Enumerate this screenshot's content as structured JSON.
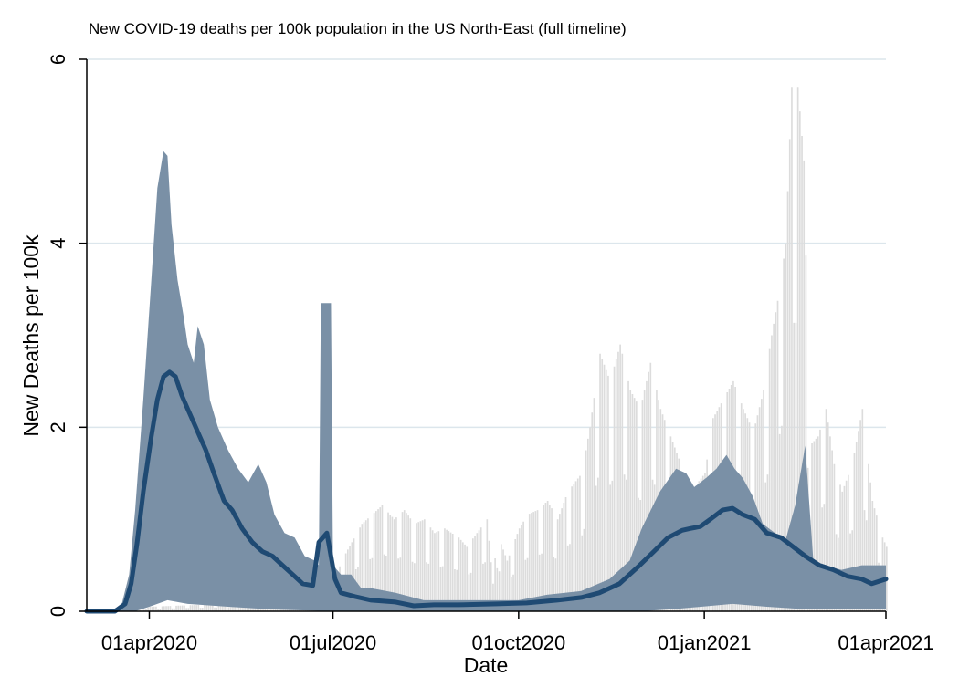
{
  "chart_data": {
    "type": "area",
    "title": "New COVID-19 deaths per 100k population in the US North-East (full timeline)",
    "xlabel": "Date",
    "ylabel": "New Deaths per 100k",
    "x_range": [
      "2020-03-01",
      "2021-04-01"
    ],
    "ylim": [
      0,
      6
    ],
    "y_ticks": [
      0,
      2,
      4,
      6
    ],
    "x_ticks": [
      {
        "date": "2020-04-01",
        "label": "01apr2020"
      },
      {
        "date": "2020-07-01",
        "label": "01jul2020"
      },
      {
        "date": "2020-10-01",
        "label": "01oct2020"
      },
      {
        "date": "2021-01-01",
        "label": "01jan2021"
      },
      {
        "date": "2021-04-01",
        "label": "01apr2021"
      }
    ],
    "grid": "horizontal",
    "legend": "none",
    "colors": {
      "range_band": "#7a90a6",
      "background_bars": "#dcdcdc",
      "mean_line": "#1f4a73",
      "grid": "#dce6ec"
    },
    "series": [
      {
        "role": "state-range band (max)",
        "points": [
          [
            "2020-03-01",
            0.0
          ],
          [
            "2020-03-10",
            0.0
          ],
          [
            "2020-03-18",
            0.05
          ],
          [
            "2020-03-22",
            0.4
          ],
          [
            "2020-03-25",
            1.1
          ],
          [
            "2020-03-29",
            2.3
          ],
          [
            "2020-04-02",
            3.6
          ],
          [
            "2020-04-05",
            4.6
          ],
          [
            "2020-04-08",
            5.0
          ],
          [
            "2020-04-10",
            4.95
          ],
          [
            "2020-04-12",
            4.2
          ],
          [
            "2020-04-15",
            3.6
          ],
          [
            "2020-04-18",
            3.2
          ],
          [
            "2020-04-20",
            2.9
          ],
          [
            "2020-04-23",
            2.7
          ],
          [
            "2020-04-25",
            3.1
          ],
          [
            "2020-04-28",
            2.9
          ],
          [
            "2020-05-01",
            2.3
          ],
          [
            "2020-05-05",
            2.0
          ],
          [
            "2020-05-10",
            1.75
          ],
          [
            "2020-05-15",
            1.55
          ],
          [
            "2020-05-20",
            1.4
          ],
          [
            "2020-05-25",
            1.6
          ],
          [
            "2020-05-29",
            1.4
          ],
          [
            "2020-06-02",
            1.05
          ],
          [
            "2020-06-07",
            0.85
          ],
          [
            "2020-06-12",
            0.8
          ],
          [
            "2020-06-17",
            0.6
          ],
          [
            "2020-06-22",
            0.55
          ],
          [
            "2020-06-24",
            0.5
          ],
          [
            "2020-06-25",
            3.35
          ],
          [
            "2020-06-30",
            3.35
          ],
          [
            "2020-07-01",
            0.5
          ],
          [
            "2020-07-05",
            0.4
          ],
          [
            "2020-07-10",
            0.4
          ],
          [
            "2020-07-15",
            0.25
          ],
          [
            "2020-07-20",
            0.25
          ],
          [
            "2020-08-01",
            0.2
          ],
          [
            "2020-08-15",
            0.12
          ],
          [
            "2020-09-01",
            0.12
          ],
          [
            "2020-09-15",
            0.12
          ],
          [
            "2020-10-01",
            0.12
          ],
          [
            "2020-10-15",
            0.18
          ],
          [
            "2020-11-01",
            0.22
          ],
          [
            "2020-11-15",
            0.35
          ],
          [
            "2020-11-25",
            0.55
          ],
          [
            "2020-12-01",
            0.9
          ],
          [
            "2020-12-10",
            1.3
          ],
          [
            "2020-12-18",
            1.55
          ],
          [
            "2020-12-23",
            1.5
          ],
          [
            "2020-12-27",
            1.35
          ],
          [
            "2021-01-02",
            1.45
          ],
          [
            "2021-01-07",
            1.55
          ],
          [
            "2021-01-12",
            1.7
          ],
          [
            "2021-01-16",
            1.55
          ],
          [
            "2021-01-20",
            1.45
          ],
          [
            "2021-01-25",
            1.25
          ],
          [
            "2021-01-30",
            0.95
          ],
          [
            "2021-02-05",
            0.85
          ],
          [
            "2021-02-10",
            0.75
          ],
          [
            "2021-02-15",
            1.15
          ],
          [
            "2021-02-20",
            1.8
          ],
          [
            "2021-02-24",
            0.55
          ],
          [
            "2021-03-01",
            0.5
          ],
          [
            "2021-03-10",
            0.45
          ],
          [
            "2021-03-20",
            0.5
          ],
          [
            "2021-04-01",
            0.5
          ]
        ]
      },
      {
        "role": "state-range band (min)",
        "points": [
          [
            "2020-03-01",
            0.0
          ],
          [
            "2020-03-25",
            0.0
          ],
          [
            "2020-04-01",
            0.05
          ],
          [
            "2020-04-10",
            0.12
          ],
          [
            "2020-04-20",
            0.08
          ],
          [
            "2020-05-10",
            0.05
          ],
          [
            "2020-06-01",
            0.02
          ],
          [
            "2020-07-01",
            0.0
          ],
          [
            "2020-12-01",
            0.0
          ],
          [
            "2020-12-20",
            0.03
          ],
          [
            "2021-01-15",
            0.08
          ],
          [
            "2021-02-01",
            0.05
          ],
          [
            "2021-02-15",
            0.03
          ],
          [
            "2021-03-01",
            0.02
          ],
          [
            "2021-04-01",
            0.02
          ]
        ]
      },
      {
        "role": "background bars (daily, highest state)",
        "points": [
          [
            "2020-03-01",
            0.0
          ],
          [
            "2020-03-25",
            0.0
          ],
          [
            "2020-04-01",
            0.05
          ],
          [
            "2020-06-01",
            0.1
          ],
          [
            "2020-07-01",
            0.3
          ],
          [
            "2020-07-05",
            0.55
          ],
          [
            "2020-07-10",
            0.75
          ],
          [
            "2020-07-15",
            0.95
          ],
          [
            "2020-07-20",
            1.05
          ],
          [
            "2020-07-25",
            1.15
          ],
          [
            "2020-07-31",
            1.0
          ],
          [
            "2020-08-05",
            1.1
          ],
          [
            "2020-08-10",
            0.95
          ],
          [
            "2020-08-15",
            1.0
          ],
          [
            "2020-08-20",
            0.85
          ],
          [
            "2020-08-25",
            0.9
          ],
          [
            "2020-09-01",
            0.8
          ],
          [
            "2020-09-05",
            0.7
          ],
          [
            "2020-09-10",
            0.85
          ],
          [
            "2020-09-15",
            1.0
          ],
          [
            "2020-09-18",
            0.3
          ],
          [
            "2020-09-20",
            0.85
          ],
          [
            "2020-09-25",
            0.55
          ],
          [
            "2020-10-01",
            0.9
          ],
          [
            "2020-10-05",
            1.05
          ],
          [
            "2020-10-10",
            1.1
          ],
          [
            "2020-10-15",
            1.2
          ],
          [
            "2020-10-20",
            1.0
          ],
          [
            "2020-10-25",
            1.3
          ],
          [
            "2020-11-01",
            1.5
          ],
          [
            "2020-11-05",
            2.0
          ],
          [
            "2020-11-10",
            2.8
          ],
          [
            "2020-11-15",
            2.5
          ],
          [
            "2020-11-20",
            2.9
          ],
          [
            "2020-11-25",
            2.4
          ],
          [
            "2020-11-30",
            2.2
          ],
          [
            "2020-12-05",
            2.7
          ],
          [
            "2020-12-10",
            2.2
          ],
          [
            "2020-12-15",
            1.9
          ],
          [
            "2020-12-20",
            1.6
          ],
          [
            "2020-12-25",
            1.3
          ],
          [
            "2021-01-01",
            1.5
          ],
          [
            "2021-01-05",
            2.1
          ],
          [
            "2021-01-10",
            2.3
          ],
          [
            "2021-01-15",
            2.5
          ],
          [
            "2021-01-20",
            2.2
          ],
          [
            "2021-01-25",
            1.95
          ],
          [
            "2021-01-30",
            2.4
          ],
          [
            "2021-02-03",
            3.0
          ],
          [
            "2021-02-07",
            3.5
          ],
          [
            "2021-02-10",
            4.0
          ],
          [
            "2021-02-13",
            5.7
          ],
          [
            "2021-02-16",
            5.7
          ],
          [
            "2021-02-19",
            4.9
          ],
          [
            "2021-02-22",
            1.8
          ],
          [
            "2021-02-26",
            1.9
          ],
          [
            "2021-03-02",
            2.2
          ],
          [
            "2021-03-06",
            1.6
          ],
          [
            "2021-03-10",
            1.3
          ],
          [
            "2021-03-15",
            1.6
          ],
          [
            "2021-03-20",
            2.2
          ],
          [
            "2021-03-25",
            1.2
          ],
          [
            "2021-03-30",
            0.8
          ],
          [
            "2021-04-01",
            0.7
          ]
        ]
      },
      {
        "role": "average line",
        "points": [
          [
            "2020-03-01",
            0.0
          ],
          [
            "2020-03-15",
            0.0
          ],
          [
            "2020-03-20",
            0.08
          ],
          [
            "2020-03-23",
            0.3
          ],
          [
            "2020-03-26",
            0.75
          ],
          [
            "2020-03-29",
            1.3
          ],
          [
            "2020-04-02",
            1.9
          ],
          [
            "2020-04-05",
            2.3
          ],
          [
            "2020-04-08",
            2.55
          ],
          [
            "2020-04-11",
            2.6
          ],
          [
            "2020-04-14",
            2.55
          ],
          [
            "2020-04-17",
            2.35
          ],
          [
            "2020-04-20",
            2.2
          ],
          [
            "2020-04-23",
            2.05
          ],
          [
            "2020-04-26",
            1.9
          ],
          [
            "2020-04-29",
            1.75
          ],
          [
            "2020-05-03",
            1.5
          ],
          [
            "2020-05-08",
            1.2
          ],
          [
            "2020-05-12",
            1.1
          ],
          [
            "2020-05-17",
            0.9
          ],
          [
            "2020-05-22",
            0.75
          ],
          [
            "2020-05-27",
            0.65
          ],
          [
            "2020-06-01",
            0.6
          ],
          [
            "2020-06-06",
            0.5
          ],
          [
            "2020-06-11",
            0.4
          ],
          [
            "2020-06-16",
            0.3
          ],
          [
            "2020-06-21",
            0.28
          ],
          [
            "2020-06-24",
            0.75
          ],
          [
            "2020-06-28",
            0.85
          ],
          [
            "2020-07-02",
            0.35
          ],
          [
            "2020-07-05",
            0.2
          ],
          [
            "2020-07-12",
            0.16
          ],
          [
            "2020-07-20",
            0.12
          ],
          [
            "2020-08-01",
            0.1
          ],
          [
            "2020-08-10",
            0.06
          ],
          [
            "2020-08-20",
            0.07
          ],
          [
            "2020-09-01",
            0.07
          ],
          [
            "2020-09-20",
            0.08
          ],
          [
            "2020-10-05",
            0.09
          ],
          [
            "2020-10-20",
            0.12
          ],
          [
            "2020-11-01",
            0.15
          ],
          [
            "2020-11-10",
            0.2
          ],
          [
            "2020-11-20",
            0.3
          ],
          [
            "2020-11-30",
            0.5
          ],
          [
            "2020-12-07",
            0.65
          ],
          [
            "2020-12-14",
            0.8
          ],
          [
            "2020-12-21",
            0.88
          ],
          [
            "2020-12-25",
            0.9
          ],
          [
            "2020-12-30",
            0.92
          ],
          [
            "2021-01-04",
            1.0
          ],
          [
            "2021-01-10",
            1.1
          ],
          [
            "2021-01-15",
            1.12
          ],
          [
            "2021-01-20",
            1.05
          ],
          [
            "2021-01-26",
            1.0
          ],
          [
            "2021-02-01",
            0.85
          ],
          [
            "2021-02-08",
            0.8
          ],
          [
            "2021-02-14",
            0.7
          ],
          [
            "2021-02-20",
            0.6
          ],
          [
            "2021-02-27",
            0.5
          ],
          [
            "2021-03-06",
            0.45
          ],
          [
            "2021-03-13",
            0.38
          ],
          [
            "2021-03-20",
            0.35
          ],
          [
            "2021-03-25",
            0.3
          ],
          [
            "2021-04-01",
            0.35
          ]
        ]
      }
    ]
  }
}
